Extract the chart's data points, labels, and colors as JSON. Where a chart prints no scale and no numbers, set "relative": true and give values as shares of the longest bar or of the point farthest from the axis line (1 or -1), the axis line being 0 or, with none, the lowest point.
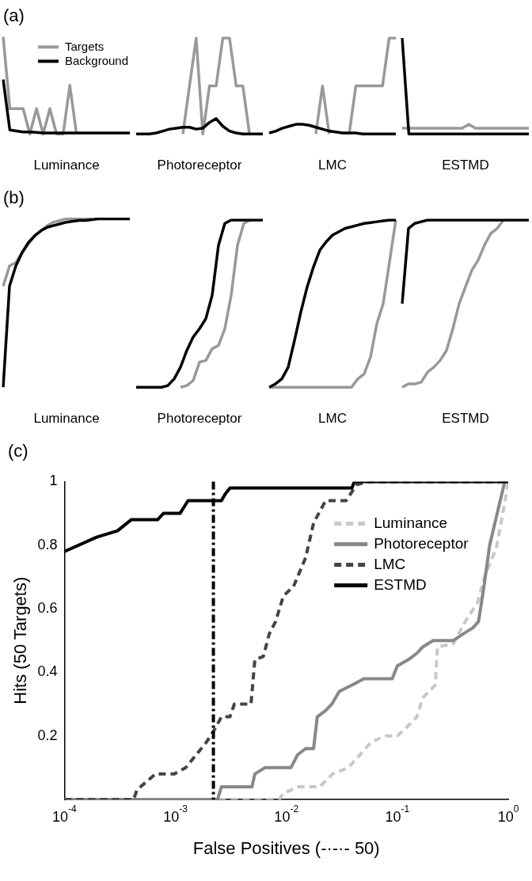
{
  "chart_data": [
    {
      "type": "line",
      "title": "(a)",
      "xlabel": "Luminance",
      "relative": true,
      "grid": false,
      "legend": "top right",
      "categories": [
        null,
        null,
        null,
        null,
        null,
        null,
        null,
        null,
        null,
        null,
        null,
        null,
        null,
        null,
        null,
        null,
        null,
        null,
        null,
        null
      ],
      "series": [
        {
          "name": "Targets",
          "color": "#999999",
          "values": [
            1,
            0.26,
            0.26,
            0.26,
            0,
            0.26,
            0,
            0.26,
            0,
            0,
            0.5,
            0,
            null,
            null,
            null,
            null,
            null,
            null,
            null,
            null
          ]
        },
        {
          "name": "Background",
          "color": "#000000",
          "values": [
            0.56,
            0.04,
            0.03,
            0.02,
            0.02,
            0.015,
            0.01,
            0.01,
            0.01,
            0.01,
            0.01,
            0.01,
            0.01,
            0.01,
            0.01,
            0.01,
            0.01,
            0.01,
            0.01,
            0.01
          ]
        }
      ]
    },
    {
      "type": "line",
      "xlabel": "Photoreceptor",
      "relative": true,
      "grid": false,
      "categories": [
        null,
        null,
        null,
        null,
        null,
        null,
        null,
        null,
        null,
        null,
        null,
        null,
        null,
        null,
        null,
        null,
        null,
        null,
        null,
        null
      ],
      "series": [
        {
          "color": "#999999",
          "values": [
            null,
            null,
            null,
            null,
            null,
            null,
            null,
            0,
            0.5,
            1,
            0,
            0.5,
            0.5,
            1,
            1,
            0.5,
            0.5,
            0,
            null,
            null
          ]
        },
        {
          "color": "#000000",
          "values": [
            0,
            0,
            0,
            0.01,
            0.03,
            0.05,
            0.06,
            0.07,
            0.07,
            0.05,
            0.06,
            0.12,
            0.16,
            0.08,
            0.03,
            0.01,
            0,
            0,
            0,
            0
          ]
        }
      ]
    },
    {
      "type": "line",
      "xlabel": "LMC",
      "relative": true,
      "grid": false,
      "categories": [
        null,
        null,
        null,
        null,
        null,
        null,
        null,
        null,
        null,
        null,
        null,
        null,
        null,
        null,
        null,
        null,
        null,
        null,
        null,
        null
      ],
      "series": [
        {
          "color": "#999999",
          "values": [
            null,
            null,
            null,
            null,
            null,
            null,
            null,
            0,
            0.5,
            0,
            null,
            null,
            0,
            0.5,
            0.5,
            0.5,
            0.5,
            0.5,
            1,
            1
          ]
        },
        {
          "color": "#000000",
          "values": [
            0.01,
            0.03,
            0.06,
            0.08,
            0.1,
            0.1,
            0.09,
            0.07,
            0.05,
            0.03,
            0.02,
            0.01,
            0.01,
            0.01,
            0,
            0,
            0,
            0,
            0,
            0
          ]
        }
      ]
    },
    {
      "type": "line",
      "xlabel": "ESTMD",
      "relative": true,
      "grid": false,
      "categories": [
        null,
        null,
        null,
        null,
        null,
        null,
        null,
        null,
        null,
        null,
        null,
        null,
        null,
        null,
        null,
        null,
        null,
        null,
        null,
        null
      ],
      "series": [
        {
          "color": "#999999",
          "values": [
            0.06,
            0.06,
            0.06,
            0.06,
            0.06,
            0.06,
            0.06,
            0.06,
            0.06,
            0.06,
            0.1,
            0.06,
            0.06,
            0.06,
            0.06,
            0.06,
            0.06,
            0.06,
            0.06,
            0.06
          ]
        },
        {
          "color": "#000000",
          "values": [
            1,
            0,
            0,
            0,
            0,
            0,
            0,
            0,
            0,
            0,
            0,
            0,
            0,
            0,
            0,
            0,
            0,
            0,
            0,
            0
          ]
        }
      ]
    },
    {
      "type": "line",
      "title": "(b)",
      "xlabel": "Luminance",
      "relative": true,
      "grid": false,
      "categories": [
        null,
        null,
        null,
        null,
        null,
        null,
        null,
        null,
        null,
        null,
        null,
        null,
        null,
        null,
        null,
        null,
        null,
        null,
        null,
        null,
        null
      ],
      "series": [
        {
          "color": "#999999",
          "values": [
            0.6,
            0.72,
            0.74,
            0.8,
            0.85,
            0.9,
            0.93,
            0.96,
            0.98,
            0.99,
            1,
            1,
            1,
            1,
            1,
            null,
            null,
            null,
            null,
            null,
            null
          ]
        },
        {
          "color": "#000000",
          "values": [
            0,
            0.6,
            0.72,
            0.8,
            0.86,
            0.9,
            0.93,
            0.95,
            0.96,
            0.97,
            0.98,
            0.985,
            0.99,
            0.99,
            0.995,
            1,
            1,
            1,
            1,
            1,
            1
          ]
        }
      ]
    },
    {
      "type": "line",
      "xlabel": "Photoreceptor",
      "relative": true,
      "grid": false,
      "categories": [
        null,
        null,
        null,
        null,
        null,
        null,
        null,
        null,
        null,
        null,
        null,
        null,
        null,
        null,
        null,
        null,
        null,
        null,
        null,
        null,
        null
      ],
      "series": [
        {
          "color": "#999999",
          "values": [
            null,
            null,
            null,
            null,
            null,
            null,
            null,
            0,
            0.01,
            0.04,
            0.15,
            0.16,
            0.23,
            0.25,
            0.35,
            0.55,
            0.85,
            0.98,
            1,
            null,
            null
          ]
        },
        {
          "color": "#000000",
          "values": [
            0,
            0,
            0,
            0,
            0,
            0.01,
            0.05,
            0.12,
            0.22,
            0.3,
            0.35,
            0.41,
            0.55,
            0.85,
            0.98,
            1,
            1,
            1,
            1,
            1,
            1
          ]
        }
      ]
    },
    {
      "type": "line",
      "xlabel": "LMC",
      "relative": true,
      "grid": false,
      "categories": [
        null,
        null,
        null,
        null,
        null,
        null,
        null,
        null,
        null,
        null,
        null,
        null,
        null,
        null,
        null,
        null,
        null,
        null,
        null,
        null,
        null
      ],
      "series": [
        {
          "color": "#999999",
          "values": [
            0,
            0,
            0,
            0,
            0,
            0,
            0,
            0,
            0,
            0,
            0,
            0,
            0,
            0,
            0.05,
            0.08,
            0.18,
            0.38,
            0.5,
            0.75,
            1
          ]
        },
        {
          "color": "#000000",
          "values": [
            0,
            0.02,
            0.05,
            0.12,
            0.28,
            0.45,
            0.6,
            0.72,
            0.82,
            0.87,
            0.91,
            0.93,
            0.95,
            0.96,
            0.97,
            0.98,
            0.985,
            0.99,
            0.995,
            1,
            1
          ]
        }
      ]
    },
    {
      "type": "line",
      "xlabel": "ESTMD",
      "relative": true,
      "grid": false,
      "categories": [
        null,
        null,
        null,
        null,
        null,
        null,
        null,
        null,
        null,
        null,
        null,
        null,
        null,
        null,
        null,
        null,
        null,
        null,
        null,
        null,
        null
      ],
      "series": [
        {
          "color": "#999999",
          "values": [
            0,
            0.02,
            0.02,
            0.03,
            0.09,
            0.12,
            0.16,
            0.22,
            0.35,
            0.5,
            0.6,
            0.7,
            0.76,
            0.85,
            0.92,
            0.95,
            1,
            null,
            null,
            null,
            null
          ]
        },
        {
          "color": "#000000",
          "values": [
            0.5,
            0.95,
            0.98,
            0.99,
            1,
            1,
            1,
            1,
            1,
            1,
            1,
            1,
            1,
            1,
            1,
            1,
            1,
            1,
            1,
            1,
            1
          ]
        }
      ]
    },
    {
      "type": "line",
      "title": "(c)",
      "xlabel": "False Positives (-·-·- 50)",
      "ylabel": "Hits (50 Targets)",
      "log": "x",
      "grid": false,
      "legend": "top right",
      "xlim": [
        0.0001,
        1
      ],
      "ylim": [
        0,
        1
      ],
      "xticks": [
        {
          "value": 0.0001,
          "label": "10$^{-4}$"
        },
        {
          "value": 0.001,
          "label": "10$^{-3}$"
        },
        {
          "value": 0.01,
          "label": "10$^{-2}$"
        },
        {
          "value": 0.1,
          "label": "10$^{-1}$"
        },
        {
          "value": 1,
          "label": "10$^{0}$"
        }
      ],
      "yticks": [
        0.2,
        0.4,
        0.6,
        0.8,
        1
      ],
      "ref_lines": [
        {
          "axis": "x",
          "value": 0.0022,
          "color": "#000000",
          "line_style": "dashed"
        }
      ],
      "series": [
        {
          "name": "Luminance",
          "color": "#c8c8c8",
          "line_style": "dashed",
          "x": [
            0.0001,
            0.0086,
            0.0094,
            0.013,
            0.02,
            0.026,
            0.036,
            0.046,
            0.058,
            0.078,
            0.1,
            0.116,
            0.15,
            0.17,
            0.22,
            0.23,
            0.32,
            0.41,
            0.53,
            0.61,
            0.78,
            0.96,
            1
          ],
          "values": [
            0,
            0,
            0.02,
            0.04,
            0.04,
            0.08,
            0.1,
            0.14,
            0.18,
            0.2,
            0.2,
            0.22,
            0.26,
            0.32,
            0.36,
            0.48,
            0.49,
            0.56,
            0.62,
            0.7,
            0.79,
            0.96,
            1
          ]
        },
        {
          "name": "Photoreceptor",
          "color": "#888888",
          "x": [
            0.0001,
            0.0024,
            0.0026,
            0.0049,
            0.0052,
            0.0064,
            0.011,
            0.0126,
            0.0149,
            0.0176,
            0.019,
            0.0226,
            0.0257,
            0.03,
            0.039,
            0.05,
            0.09,
            0.1,
            0.126,
            0.15,
            0.17,
            0.21,
            0.32,
            0.39,
            0.48,
            0.54,
            0.61,
            0.68,
            0.93,
            1
          ],
          "values": [
            0,
            0,
            0.04,
            0.04,
            0.08,
            0.1,
            0.1,
            0.14,
            0.16,
            0.16,
            0.26,
            0.28,
            0.3,
            0.34,
            0.36,
            0.38,
            0.38,
            0.42,
            0.44,
            0.46,
            0.48,
            0.5,
            0.5,
            0.52,
            0.54,
            0.56,
            0.68,
            0.8,
            1,
            1
          ]
        },
        {
          "name": "LMC",
          "color": "#444444",
          "line_style": "dashed",
          "x": [
            0.0001,
            0.00042,
            0.00045,
            0.00066,
            0.00097,
            0.00124,
            0.0019,
            0.00225,
            0.0026,
            0.0031,
            0.0034,
            0.0048,
            0.0052,
            0.0062,
            0.007,
            0.008,
            0.0094,
            0.0116,
            0.0149,
            0.0176,
            0.0226,
            0.0345,
            0.043,
            0.055,
            1
          ],
          "values": [
            0,
            0,
            0.03,
            0.08,
            0.08,
            0.1,
            0.18,
            0.22,
            0.26,
            0.26,
            0.3,
            0.3,
            0.44,
            0.45,
            0.52,
            0.56,
            0.64,
            0.67,
            0.76,
            0.87,
            0.94,
            0.94,
            0.99,
            1,
            1
          ]
        },
        {
          "name": "ESTMD",
          "color": "#000000",
          "x": [
            0.0001,
            0.000195,
            0.0003,
            0.0004,
            0.00069,
            0.00078,
            0.0011,
            0.0013,
            0.0026,
            0.0028,
            0.0031,
            0.039,
            0.041,
            1
          ],
          "values": [
            0.78,
            0.825,
            0.845,
            0.88,
            0.88,
            0.9,
            0.9,
            0.94,
            0.94,
            0.96,
            0.98,
            0.98,
            1,
            1
          ]
        }
      ]
    }
  ]
}
